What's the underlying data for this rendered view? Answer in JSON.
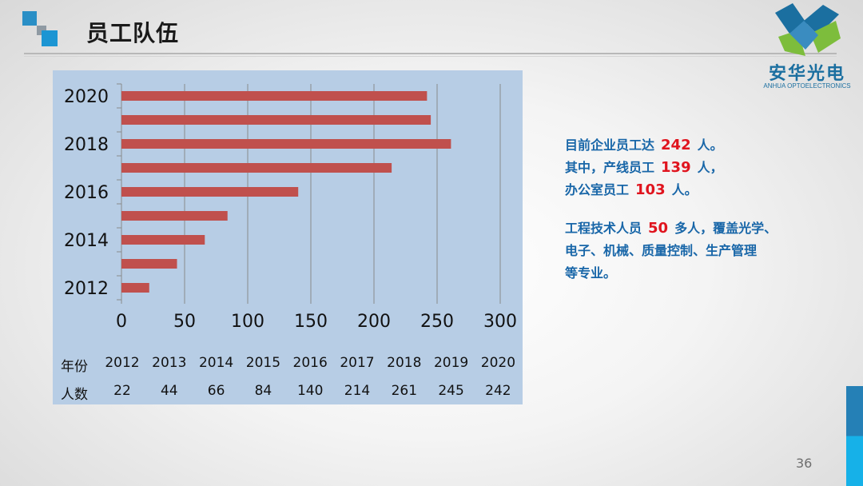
{
  "title": "员工队伍",
  "logo": {
    "name": "安华光电",
    "sub": "ANHUA OPTOELECTRONICS",
    "colors": [
      "#1b6fa0",
      "#7dbd3c"
    ]
  },
  "chart_data": {
    "type": "bar",
    "orientation": "horizontal",
    "categories": [
      "2012",
      "2013",
      "2014",
      "2015",
      "2016",
      "2017",
      "2018",
      "2019",
      "2020"
    ],
    "values": [
      22,
      44,
      66,
      84,
      140,
      214,
      261,
      245,
      242
    ],
    "y_tick_labels": [
      "2012",
      "2014",
      "2016",
      "2018",
      "2020"
    ],
    "x_ticks": [
      0,
      50,
      100,
      150,
      200,
      250,
      300
    ],
    "xlim": [
      0,
      300
    ],
    "grid": "vertical",
    "bar_color": "#c0504d",
    "background": "#b7cde5",
    "table": {
      "row_labels": [
        "年份",
        "人数"
      ],
      "years": [
        "2012",
        "2013",
        "2014",
        "2015",
        "2016",
        "2017",
        "2018",
        "2019",
        "2020"
      ],
      "counts": [
        "22",
        "44",
        "66",
        "84",
        "140",
        "214",
        "261",
        "245",
        "242"
      ]
    }
  },
  "info": {
    "line1_pre": "目前企业员工达",
    "total": "242",
    "line1_post": "人。",
    "line2_pre": "其中，产线员工",
    "production": "139",
    "line2_post": "人，",
    "line3_pre": "办公室员工",
    "office": "103",
    "line3_post": "人。",
    "line4_pre": "工程技术人员",
    "engineers": "50",
    "line4_post": "多人，覆盖光学、",
    "line5": "电子、机械、质量控制、生产管理",
    "line6": "等专业。"
  },
  "page_number": "36"
}
